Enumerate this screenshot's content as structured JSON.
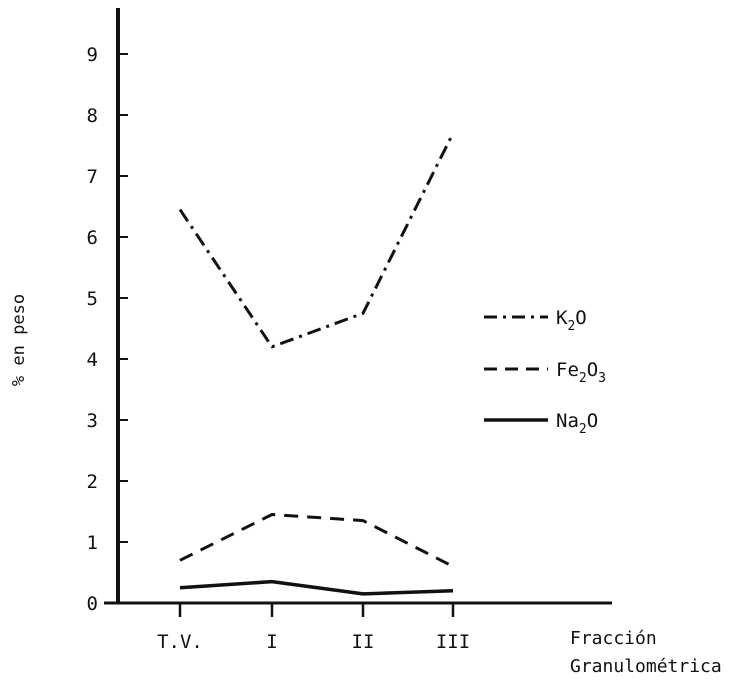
{
  "chart_data": {
    "type": "line",
    "categories": [
      "T.V.",
      "I",
      "II",
      "III"
    ],
    "series": [
      {
        "name": "K2O",
        "name_base": "K",
        "name_sub": "2",
        "name_tail": "O",
        "line_style": "dash-dot",
        "values": [
          6.45,
          4.2,
          4.75,
          7.7
        ]
      },
      {
        "name": "Fe2O3",
        "name_base": "Fe",
        "name_sub": "2",
        "name_tail": "O",
        "name_sub2": "3",
        "line_style": "dashed",
        "values": [
          0.7,
          1.45,
          1.35,
          0.6
        ]
      },
      {
        "name": "Na2O",
        "name_base": "Na",
        "name_sub": "2",
        "name_tail": "O",
        "line_style": "solid",
        "values": [
          0.25,
          0.35,
          0.15,
          0.2
        ]
      }
    ],
    "y_ticks": [
      "0",
      "1",
      "2",
      "3",
      "4",
      "5",
      "6",
      "7",
      "8",
      "9"
    ],
    "ylim": [
      0,
      10
    ],
    "ylabel": "% en peso",
    "xlabel_line1": "Fracción",
    "xlabel_line2": "Granulométrica",
    "legend_position": "right",
    "grid": false,
    "line_color": "#111111"
  }
}
